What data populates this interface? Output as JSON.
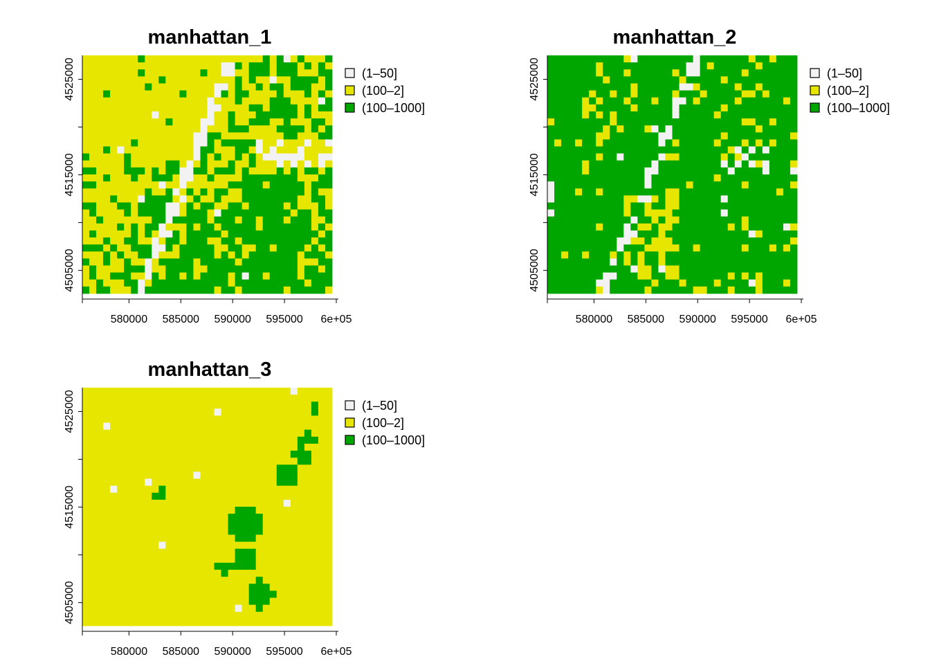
{
  "colors": {
    "background": "#ffffff",
    "class_1_50": "#f2f2f2",
    "class_100_2": "#e6e600",
    "class_100_1000": "#00a600"
  },
  "legend": [
    {
      "label": "(1–50]",
      "color": "#f2f2f2"
    },
    {
      "label": "(100–2]",
      "color": "#e6e600"
    },
    {
      "label": "(100–1000]",
      "color": "#00a600"
    }
  ],
  "axes": {
    "x_ticks": [
      "580000",
      "585000",
      "590000",
      "595000",
      "6e+05"
    ],
    "y_ticks": [
      "4505000",
      "4515000",
      "4525000"
    ]
  },
  "chart_data": [
    {
      "type": "heatmap",
      "title": "manhattan_1",
      "xlim": [
        575500,
        600200
      ],
      "ylim": [
        4502000,
        4527500
      ],
      "x_ticks": [
        580000,
        585000,
        590000,
        595000,
        600000
      ],
      "y_ticks": [
        4505000,
        4515000,
        4525000
      ],
      "classes": [
        "(1–50]",
        "(100–2]",
        "(100–1000]"
      ],
      "description": "Mostly (100–2] in the west, a diagonal (1–50] band from the south-west to the north, (100–1000] dominating the east and south-east."
    },
    {
      "type": "heatmap",
      "title": "manhattan_2",
      "xlim": [
        575500,
        600200
      ],
      "ylim": [
        4502000,
        4527500
      ],
      "x_ticks": [
        580000,
        585000,
        590000,
        595000,
        600000
      ],
      "y_ticks": [
        4505000,
        4515000,
        4525000
      ],
      "classes": [
        "(1–50]",
        "(100–2]",
        "(100–1000]"
      ],
      "description": "Mostly (100–1000] with a diagonal (1–50] band and scattered (100–2] cells."
    },
    {
      "type": "heatmap",
      "title": "manhattan_3",
      "xlim": [
        575500,
        600200
      ],
      "ylim": [
        4502000,
        4527500
      ],
      "x_ticks": [
        580000,
        585000,
        590000,
        595000,
        600000
      ],
      "y_ticks": [
        4505000,
        4515000,
        4525000
      ],
      "classes": [
        "(1–50]",
        "(100–2]",
        "(100–1000]"
      ],
      "description": "Almost entirely (100–2] with small (100–1000] clusters in the east and a few (1–50] cells."
    }
  ]
}
